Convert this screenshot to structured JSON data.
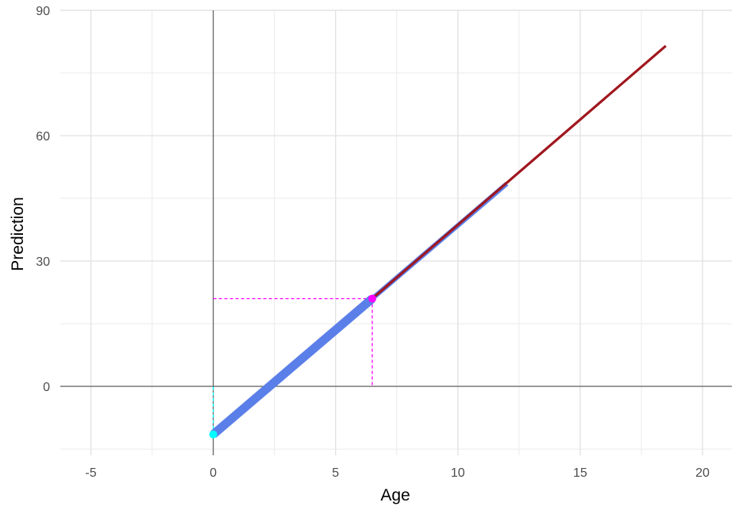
{
  "chart_data": {
    "type": "line",
    "title": "",
    "xlabel": "Age",
    "ylabel": "Prediction",
    "xlim": [
      -6.25,
      21.2
    ],
    "ylim": [
      -16.5,
      90
    ],
    "x_ticks": [
      -5,
      0,
      5,
      10,
      15,
      20
    ],
    "y_ticks": [
      0,
      30,
      60,
      90
    ],
    "x_tick_labels": [
      "-5",
      "0",
      "5",
      "10",
      "15",
      "20"
    ],
    "y_tick_labels": [
      "0",
      "30",
      "60",
      "90"
    ],
    "grid": true,
    "reference_lines": {
      "x": 0,
      "y": 0
    },
    "series": [
      {
        "segments": [
          {
            "x": [
              0,
              6.5
            ],
            "y": [
              -11.5,
              21
            ],
            "width": "thick"
          },
          {
            "x": [
              6.5,
              12
            ],
            "y": [
              21,
              48.5
            ],
            "width": "medium"
          }
        ],
        "color": "#5b7fe8"
      },
      {
        "x": [
          6.5,
          18.5
        ],
        "y": [
          21,
          81.5
        ],
        "color": "#a0171f"
      }
    ],
    "markers": [
      {
        "x": 0,
        "y": -11.5,
        "color": "#00ffff",
        "guide": "to-x-axis"
      },
      {
        "x": 6.5,
        "y": 21,
        "color": "#ff00ff",
        "guide": "to-both-axes"
      }
    ]
  }
}
